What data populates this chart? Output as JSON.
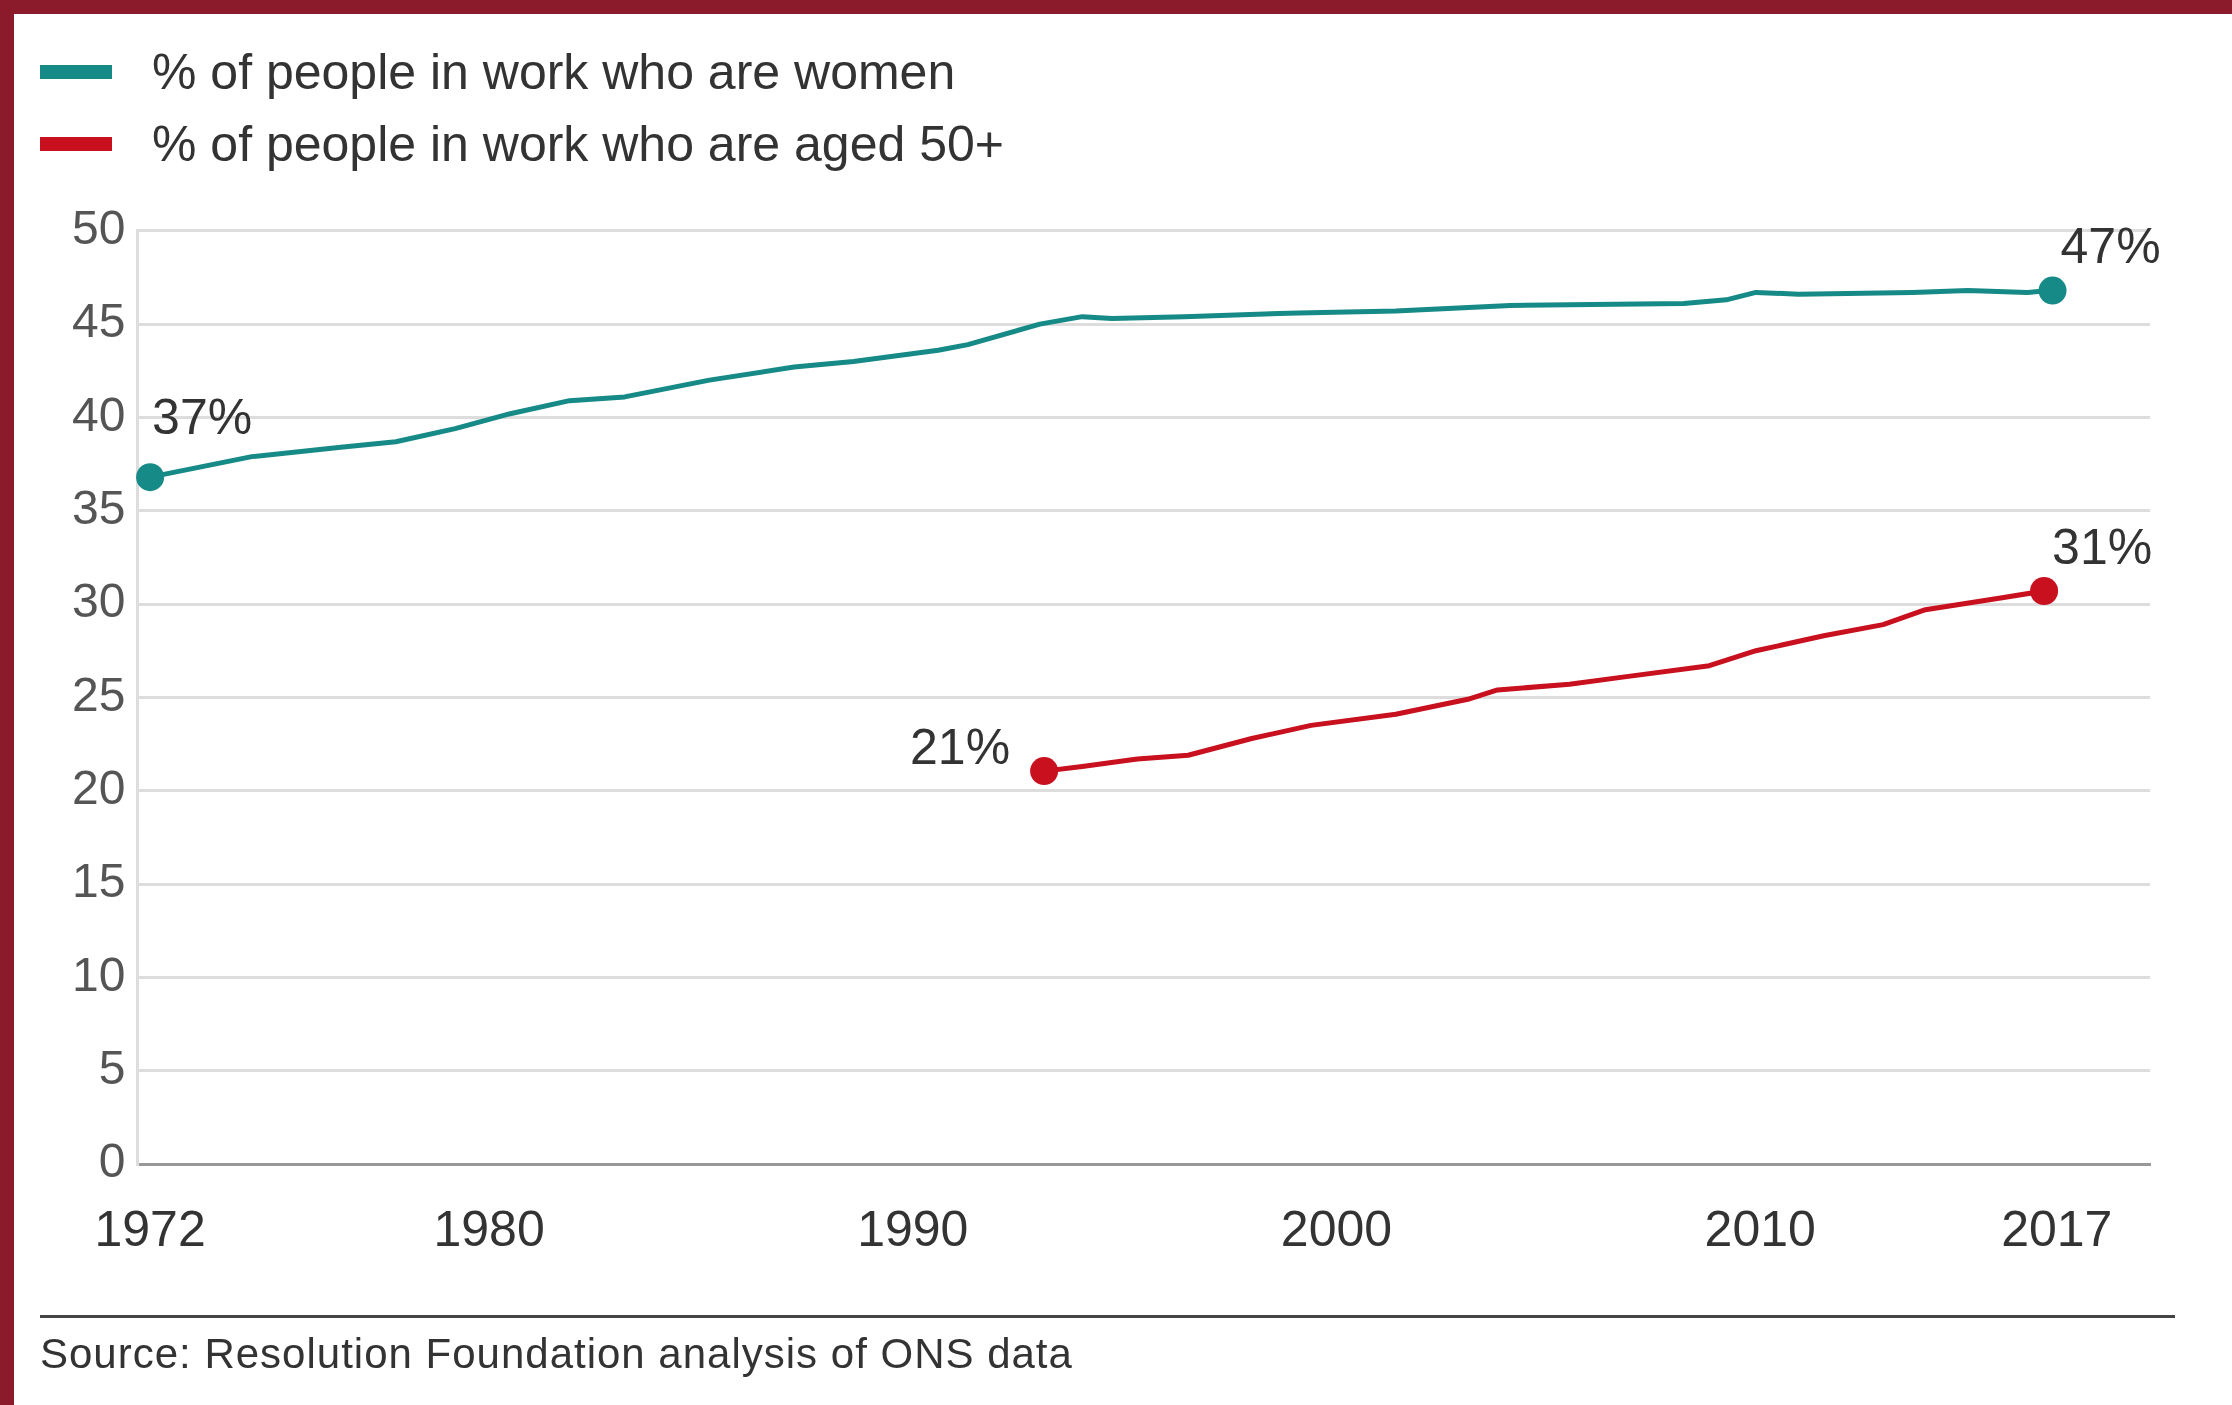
{
  "chart_data": {
    "type": "line",
    "xlim": [
      1971.7,
      2019.2
    ],
    "xticks": [
      1972,
      1980,
      1990,
      2000,
      2010,
      2017
    ],
    "ylim": [
      0,
      50
    ],
    "yticks": [
      0,
      5,
      10,
      15,
      20,
      25,
      30,
      35,
      40,
      45,
      50
    ],
    "grid": "y",
    "legend": "top left",
    "series": [
      {
        "name": "% of people in work who are women",
        "color": "#168a86",
        "x": [
          1972,
          1974.4,
          1976.5,
          1977.8,
          1979.2,
          1980.5,
          1981.9,
          1983.2,
          1985.2,
          1987.2,
          1988.6,
          1990.6,
          1991.3,
          1993,
          1994,
          1994.7,
          1996.4,
          1999.1,
          2001.4,
          2004.1,
          2008.2,
          2009.2,
          2009.9,
          2010.9,
          2013.6,
          2014.9,
          2016.3,
          2016.9
        ],
        "values": [
          36.8,
          37.9,
          38.4,
          38.7,
          39.4,
          40.2,
          40.9,
          41.1,
          42.0,
          42.7,
          43.0,
          43.6,
          43.9,
          45.0,
          45.4,
          45.3,
          45.4,
          45.6,
          45.7,
          46.0,
          46.1,
          46.3,
          46.7,
          46.6,
          46.7,
          46.8,
          46.7,
          46.8
        ]
      },
      {
        "name": "% of people in work who are aged 50+",
        "color": "#c8101e",
        "x": [
          1993.1,
          1994,
          1995.3,
          1996.5,
          1998,
          1999.4,
          2001.4,
          2003.1,
          2003.8,
          2005.5,
          2006.8,
          2008.8,
          2009.9,
          2011.5,
          2012.9,
          2013.9,
          2015.6,
          2016.7
        ],
        "values": [
          21.05,
          21.3,
          21.7,
          21.9,
          22.8,
          23.5,
          24.1,
          24.9,
          25.4,
          25.7,
          26.1,
          26.7,
          27.5,
          28.3,
          28.9,
          29.7,
          30.3,
          30.7
        ]
      }
    ],
    "annotations": [
      {
        "text": "37%",
        "x": 1972,
        "y": 36.8
      },
      {
        "text": "47%",
        "x": 2016.9,
        "y": 46.8
      },
      {
        "text": "21%",
        "x": 1993.1,
        "y": 21.05
      },
      {
        "text": "31%",
        "x": 2016.7,
        "y": 30.7
      },
      "Source: Resolution Foundation analysis of ONS data"
    ]
  }
}
